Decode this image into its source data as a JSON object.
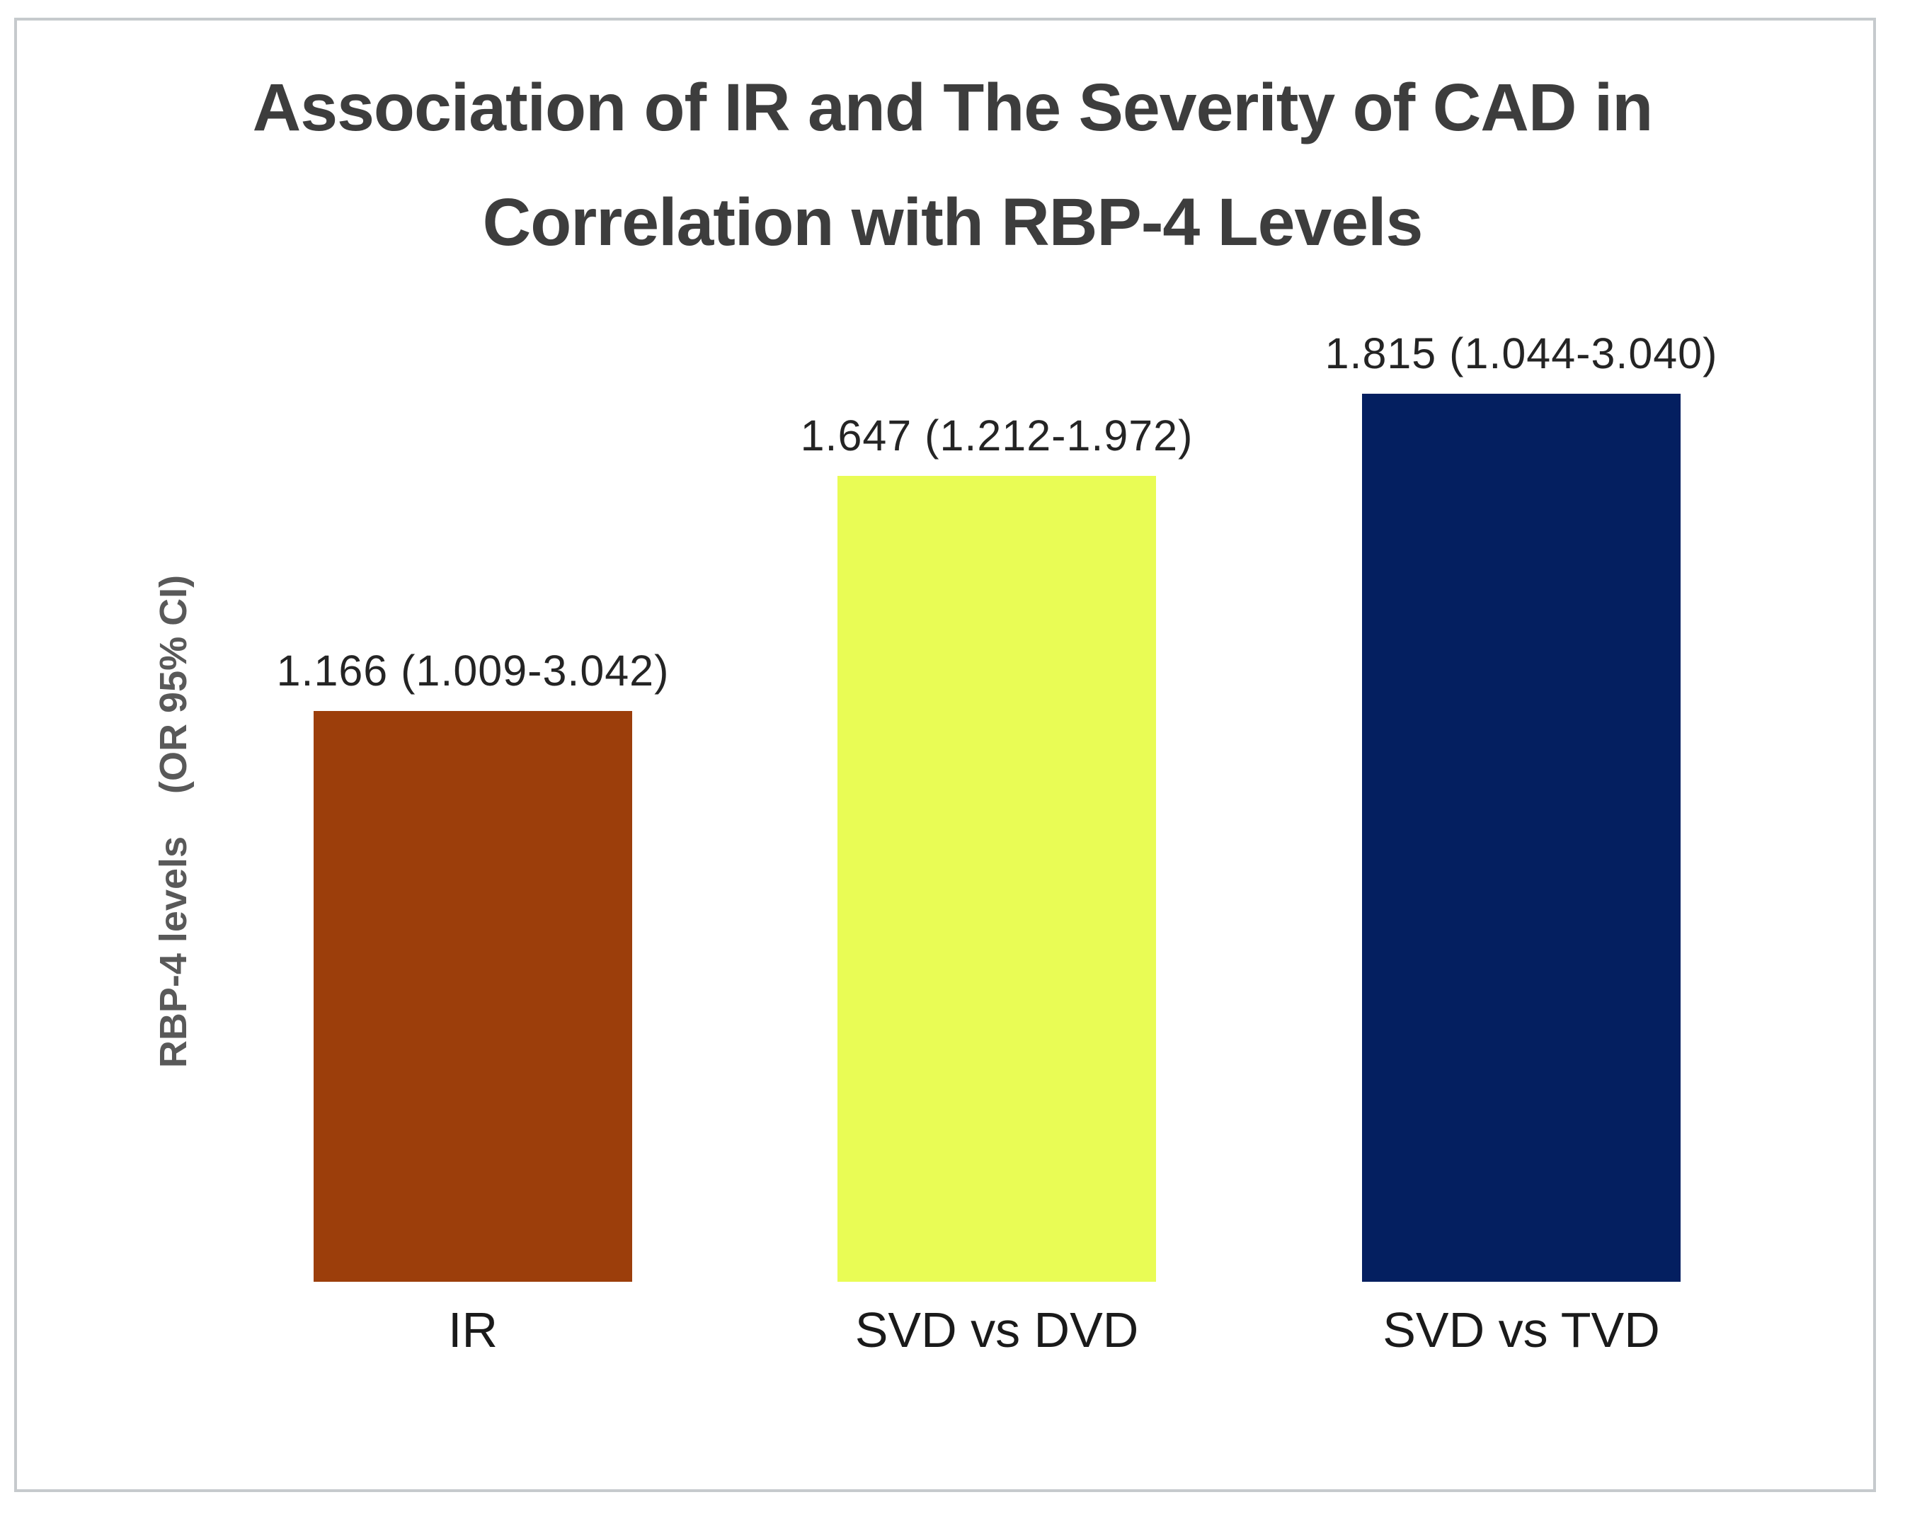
{
  "figure": {
    "title_line1": "Association of IR and The Severity of CAD in",
    "title_line2": "Correlation with RBP-4 Levels",
    "y_axis_label": "RBP-4 levels    (OR 95% CI)"
  },
  "chart_data": {
    "type": "bar",
    "title": "Association of IR and The Severity of CAD in Correlation with RBP-4 Levels",
    "xlabel": "",
    "ylabel": "RBP-4 levels (OR 95% CI)",
    "categories": [
      "IR",
      "SVD vs DVD",
      "SVD vs TVD"
    ],
    "values": [
      1.166,
      1.647,
      1.815
    ],
    "value_labels": [
      "1.166 (1.009-3.042)",
      "1.647 (1.212-1.972)",
      "1.815 (1.044-3.040)"
    ],
    "bar_colors": [
      "#9c3e0b",
      "#e9fc55",
      "#041f60"
    ],
    "ylim": [
      0,
      1.9
    ],
    "y_axis_ticks_visible": false,
    "grid": false,
    "legend": null
  },
  "colors": {
    "background": "#ffffff",
    "border": "#c6cacd",
    "title_text": "#3d3d3d",
    "y_axis_text": "#595959",
    "value_label_text": "#242424",
    "category_label_text": "#1a1a1a"
  }
}
